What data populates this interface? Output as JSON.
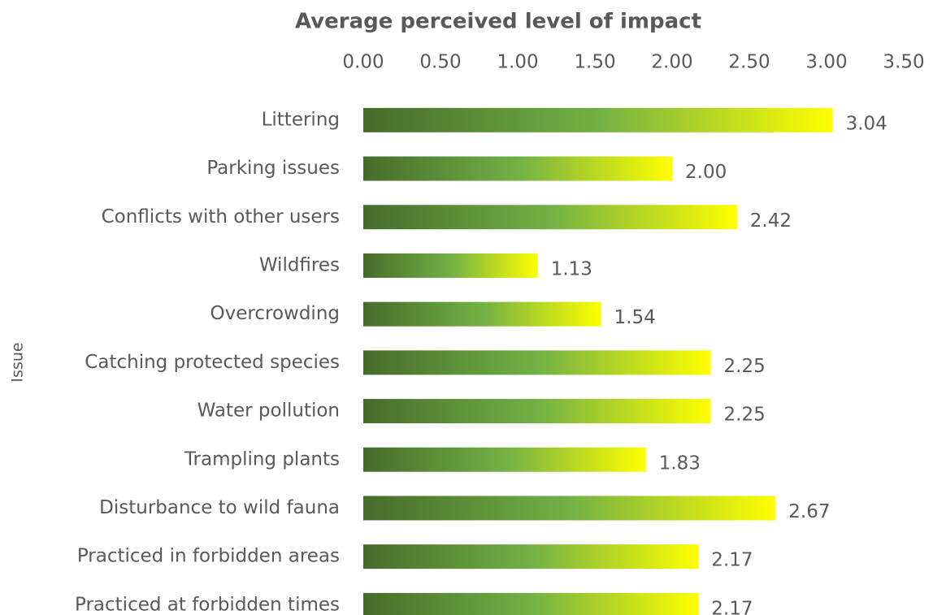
{
  "chart_data": {
    "type": "barh",
    "title": "Average perceived level of impact",
    "y_label": "Issue",
    "categories": [
      "Littering",
      "Parking issues",
      "Conflicts with other users",
      "Wildfires",
      "Overcrowding",
      "Catching protected species",
      "Water pollution",
      "Trampling plants",
      "Disturbance to wild fauna",
      "Practiced in forbidden areas",
      "Practiced at forbidden times"
    ],
    "values": [
      3.04,
      2,
      2.42,
      1.13,
      1.54,
      2.25,
      2.25,
      1.83,
      2.67,
      2.17,
      2.17
    ],
    "value_labels": [
      "3.04",
      "2.00",
      "2.42",
      "1.13",
      "1.54",
      "2.25",
      "2.25",
      "1.83",
      "2.67",
      "2.17",
      "2.17"
    ],
    "gradient": [
      "#466b2a",
      "#72b145",
      "#ffff00"
    ],
    "xlim": [
      0,
      3.5
    ],
    "xticks": [
      {
        "value": 0,
        "label": "0.00"
      },
      {
        "value": 0.5,
        "label": "0.50"
      },
      {
        "value": 1,
        "label": "1.00"
      },
      {
        "value": 1.5,
        "label": "1.50"
      },
      {
        "value": 2,
        "label": "2.00"
      },
      {
        "value": 2.5,
        "label": "2.50"
      },
      {
        "value": 3,
        "label": "3.00"
      },
      {
        "value": 3.5,
        "label": "3.50"
      }
    ],
    "grid": false
  }
}
